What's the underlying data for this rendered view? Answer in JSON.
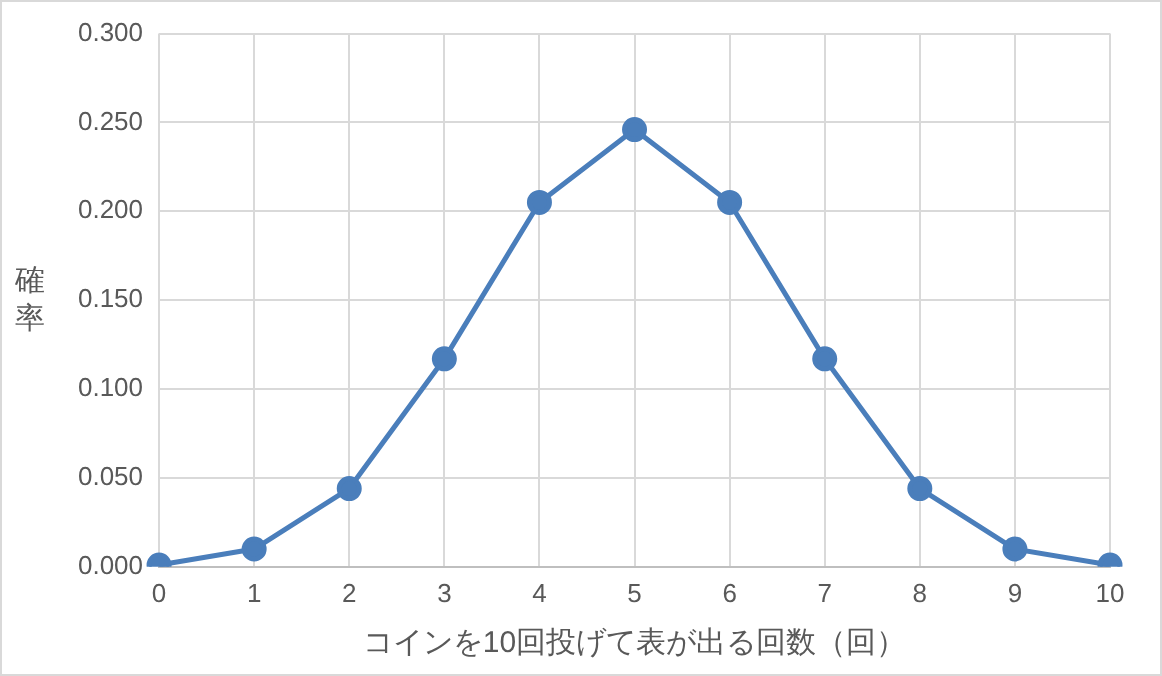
{
  "chart_data": {
    "type": "line",
    "xlabel": "コインを10回投げて表が出る回数（回）",
    "ylabel": "確率",
    "categories": [
      "0",
      "1",
      "2",
      "3",
      "4",
      "5",
      "6",
      "7",
      "8",
      "9",
      "10"
    ],
    "series": [
      {
        "color": "#4a7ebb",
        "values": [
          0.001,
          0.01,
          0.044,
          0.117,
          0.205,
          0.246,
          0.205,
          0.117,
          0.044,
          0.01,
          0.001
        ]
      }
    ],
    "ylim": [
      0,
      0.3
    ],
    "yticks": [
      {
        "value": 0,
        "label": "0.000"
      },
      {
        "value": 0.05,
        "label": "0.050"
      },
      {
        "value": 0.1,
        "label": "0.100"
      },
      {
        "value": 0.15,
        "label": "0.150"
      },
      {
        "value": 0.2,
        "label": "0.200"
      },
      {
        "value": 0.25,
        "label": "0.250"
      },
      {
        "value": 0.3,
        "label": "0.300"
      }
    ],
    "grid": true,
    "legend": false,
    "marker": "circle",
    "line_style": "solid"
  }
}
